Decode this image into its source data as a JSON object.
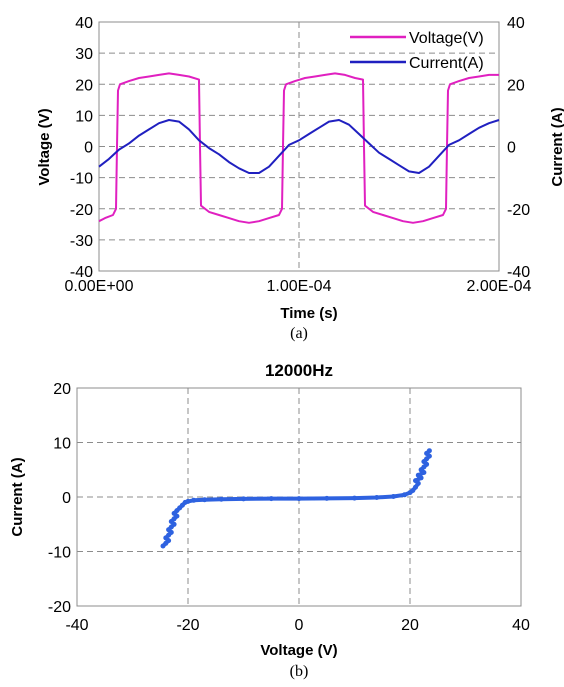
{
  "chart_data": [
    {
      "type": "line",
      "panel_label": "(a)",
      "xlabel": "Time (s)",
      "ylabel": "Voltage (V)",
      "y2label": "Current (A)",
      "xlim": [
        0,
        0.0002
      ],
      "ylim": [
        -40,
        40
      ],
      "y2lim": [
        -40,
        40
      ],
      "xticks": [
        "0.00E+00",
        "1.00E-04",
        "2.00E-04"
      ],
      "xtick_values": [
        0,
        0.0001,
        0.0002
      ],
      "yticks": [
        "-40",
        "-30",
        "-20",
        "-10",
        "0",
        "10",
        "20",
        "30",
        "40"
      ],
      "y2ticks": [
        "-40",
        "-20",
        "0",
        "20",
        "40"
      ],
      "grid": true,
      "legend_position": "top-right",
      "series": [
        {
          "name": "Voltage(V)",
          "axis": "left",
          "color": "#e020c0",
          "points": [
            [
              0.0,
              -24
            ],
            [
              3e-06,
              -23
            ],
            [
              7e-06,
              -22
            ],
            [
              8.5e-06,
              -20
            ],
            [
              9e-06,
              0
            ],
            [
              9.5e-06,
              18
            ],
            [
              1.05e-05,
              20
            ],
            [
              1.5e-05,
              21
            ],
            [
              2e-05,
              22
            ],
            [
              2.5e-05,
              22.5
            ],
            [
              3e-05,
              23
            ],
            [
              3.5e-05,
              23.5
            ],
            [
              4e-05,
              23
            ],
            [
              4.5e-05,
              22.5
            ],
            [
              5e-05,
              21.5
            ],
            [
              5.05e-05,
              0
            ],
            [
              5.1e-05,
              -19
            ],
            [
              5.5e-05,
              -21
            ],
            [
              6e-05,
              -22
            ],
            [
              6.5e-05,
              -23
            ],
            [
              7e-05,
              -24
            ],
            [
              7.5e-05,
              -24.5
            ],
            [
              8e-05,
              -24
            ],
            [
              8.5e-05,
              -23
            ],
            [
              9e-05,
              -22
            ],
            [
              9.15e-05,
              -20
            ],
            [
              9.2e-05,
              0
            ],
            [
              9.25e-05,
              18
            ],
            [
              9.35e-05,
              20
            ],
            [
              9.8e-05,
              21
            ],
            [
              0.000103,
              22
            ],
            [
              0.000108,
              22.5
            ],
            [
              0.000113,
              23
            ],
            [
              0.000118,
              23.5
            ],
            [
              0.000123,
              23
            ],
            [
              0.000128,
              22
            ],
            [
              0.000132,
              21.5
            ],
            [
              0.0001325,
              0
            ],
            [
              0.000133,
              -19
            ],
            [
              0.000137,
              -21
            ],
            [
              0.000142,
              -22
            ],
            [
              0.000147,
              -23
            ],
            [
              0.000152,
              -24
            ],
            [
              0.000157,
              -24.5
            ],
            [
              0.000162,
              -24
            ],
            [
              0.000167,
              -23
            ],
            [
              0.000172,
              -22
            ],
            [
              0.0001735,
              -20
            ],
            [
              0.000174,
              0
            ],
            [
              0.0001745,
              18
            ],
            [
              0.0001755,
              20
            ],
            [
              0.00018,
              21
            ],
            [
              0.000185,
              22
            ],
            [
              0.00019,
              22.5
            ],
            [
              0.000195,
              23
            ],
            [
              0.0002,
              23
            ]
          ]
        },
        {
          "name": "Current(A)",
          "axis": "right",
          "color": "#2020c0",
          "points": [
            [
              0.0,
              -6.5
            ],
            [
              5e-06,
              -4
            ],
            [
              1e-05,
              -1
            ],
            [
              1.5e-05,
              1
            ],
            [
              2e-05,
              3.5
            ],
            [
              2.5e-05,
              5.5
            ],
            [
              3e-05,
              7.5
            ],
            [
              3.5e-05,
              8.5
            ],
            [
              4e-05,
              8
            ],
            [
              4.5e-05,
              5.5
            ],
            [
              5e-05,
              2
            ],
            [
              5.5e-05,
              -0.5
            ],
            [
              6e-05,
              -2.5
            ],
            [
              6.5e-05,
              -5
            ],
            [
              7e-05,
              -7
            ],
            [
              7.5e-05,
              -8.5
            ],
            [
              8e-05,
              -8.5
            ],
            [
              8.5e-05,
              -6.5
            ],
            [
              9e-05,
              -3
            ],
            [
              9.5e-05,
              0.5
            ],
            [
              0.0001,
              2
            ],
            [
              0.000105,
              4
            ],
            [
              0.00011,
              6
            ],
            [
              0.000115,
              8
            ],
            [
              0.00012,
              8.5
            ],
            [
              0.000125,
              7
            ],
            [
              0.00013,
              4
            ],
            [
              0.000135,
              1
            ],
            [
              0.00014,
              -2
            ],
            [
              0.000145,
              -4
            ],
            [
              0.00015,
              -6
            ],
            [
              0.000155,
              -8
            ],
            [
              0.00016,
              -8.5
            ],
            [
              0.000165,
              -6.5
            ],
            [
              0.00017,
              -3
            ],
            [
              0.000175,
              0.5
            ],
            [
              0.00018,
              2
            ],
            [
              0.000185,
              4
            ],
            [
              0.00019,
              6
            ],
            [
              0.000195,
              7.5
            ],
            [
              0.0002,
              8.5
            ]
          ]
        }
      ]
    },
    {
      "type": "scatter",
      "panel_label": "(b)",
      "title": "12000Hz",
      "xlabel": "Voltage (V)",
      "ylabel": "Current (A)",
      "xlim": [
        -40,
        40
      ],
      "ylim": [
        -20,
        20
      ],
      "xticks": [
        "-40",
        "-20",
        "0",
        "20",
        "40"
      ],
      "yticks": [
        "-20",
        "-10",
        "0",
        "10",
        "20"
      ],
      "grid": true,
      "series": [
        {
          "color": "#2e62e0",
          "points": [
            [
              -24.5,
              -9
            ],
            [
              -24,
              -8.5
            ],
            [
              -23.5,
              -8
            ],
            [
              -24,
              -7.5
            ],
            [
              -23.5,
              -7
            ],
            [
              -23,
              -6.5
            ],
            [
              -23.5,
              -6
            ],
            [
              -23,
              -5.5
            ],
            [
              -22.5,
              -5
            ],
            [
              -23,
              -4.5
            ],
            [
              -22.5,
              -4
            ],
            [
              -22,
              -3.5
            ],
            [
              -22.5,
              -3
            ],
            [
              -22,
              -2.5
            ],
            [
              -21.5,
              -2
            ],
            [
              -21,
              -1.5
            ],
            [
              -20.5,
              -1
            ],
            [
              -20,
              -0.8
            ],
            [
              -19,
              -0.6
            ],
            [
              -17,
              -0.5
            ],
            [
              -14,
              -0.4
            ],
            [
              -10,
              -0.35
            ],
            [
              -5,
              -0.3
            ],
            [
              0,
              -0.3
            ],
            [
              5,
              -0.25
            ],
            [
              10,
              -0.2
            ],
            [
              14,
              -0.1
            ],
            [
              17,
              0.1
            ],
            [
              19,
              0.4
            ],
            [
              20,
              0.8
            ],
            [
              20.5,
              1.2
            ],
            [
              21,
              1.8
            ],
            [
              21.5,
              2.5
            ],
            [
              21,
              3
            ],
            [
              22,
              3.5
            ],
            [
              21.5,
              4
            ],
            [
              22.5,
              4.5
            ],
            [
              22,
              5
            ],
            [
              22.5,
              5.5
            ],
            [
              23,
              6
            ],
            [
              22.5,
              6.5
            ],
            [
              23,
              7
            ],
            [
              23.5,
              7.5
            ],
            [
              23,
              8
            ],
            [
              23.5,
              8.5
            ]
          ]
        }
      ]
    }
  ]
}
